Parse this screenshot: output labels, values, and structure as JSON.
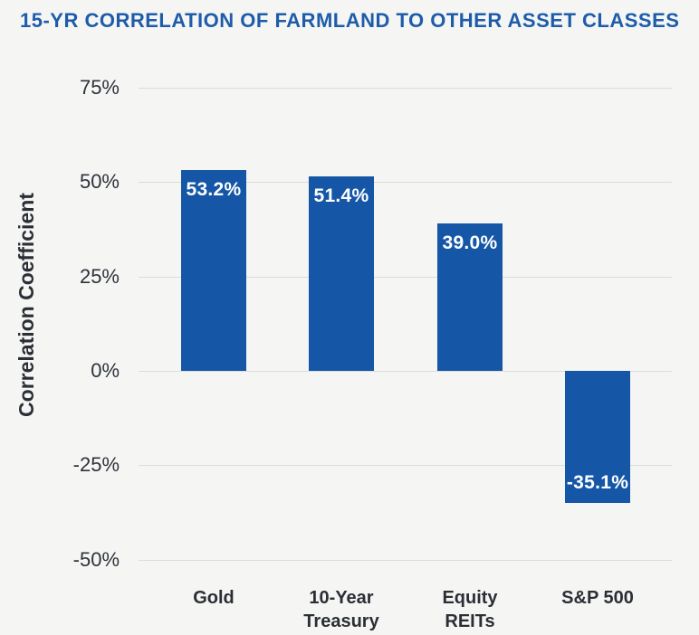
{
  "title": "15-YR CORRELATION OF FARMLAND TO OTHER ASSET CLASSES",
  "chart_data": {
    "type": "bar",
    "title": "15-YR CORRELATION OF FARMLAND TO OTHER ASSET CLASSES",
    "xlabel": "",
    "ylabel": "Correlation Coefficient",
    "categories": [
      "Gold",
      "10-Year Treasury",
      "Equity REITs",
      "S&P 500"
    ],
    "category_lines": [
      [
        "Gold"
      ],
      [
        "10-Year",
        "Treasury"
      ],
      [
        "Equity",
        "REITs"
      ],
      [
        "S&P 500"
      ]
    ],
    "values": [
      53.2,
      51.4,
      39.0,
      -35.1
    ],
    "value_labels": [
      "53.2%",
      "51.4%",
      "39.0%",
      "-35.1%"
    ],
    "y_ticks": [
      "75%",
      "50%",
      "25%",
      "0%",
      "-25%",
      "-50%"
    ],
    "y_tick_values": [
      75,
      50,
      25,
      0,
      -25,
      -50
    ],
    "ylim": [
      -50,
      75
    ],
    "grid": true,
    "legend": "none",
    "colors": {
      "bar": "#1557A6",
      "title": "#1E5CAA",
      "axis_text": "#2B2E35",
      "tick_text": "#2E323A",
      "gridline": "#DBDCDB",
      "background": "#F5F6F4",
      "value_label_text": "#FFFFFF"
    }
  }
}
